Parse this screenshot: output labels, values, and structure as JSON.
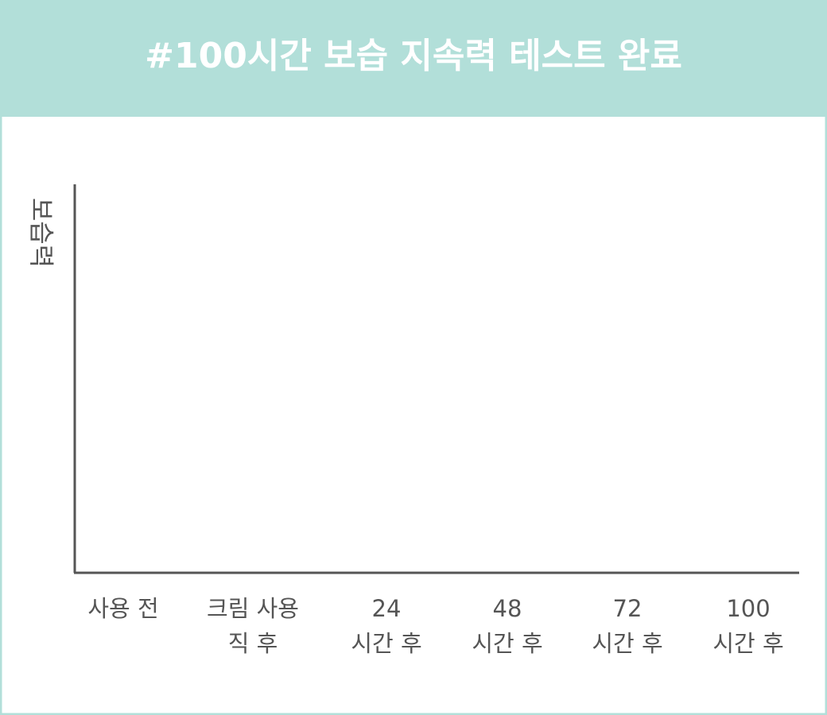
{
  "chart_data": {
    "type": "line",
    "title": "#100시간 보습 지속력 테스트 완료",
    "y_label": "보습력",
    "categories": [
      [
        "사용 전"
      ],
      [
        "크림 사용",
        "직 후"
      ],
      [
        "24",
        "시간 후"
      ],
      [
        "48",
        "시간 후"
      ],
      [
        "72",
        "시간 후"
      ],
      [
        "100",
        "시간 후"
      ]
    ],
    "series": []
  }
}
